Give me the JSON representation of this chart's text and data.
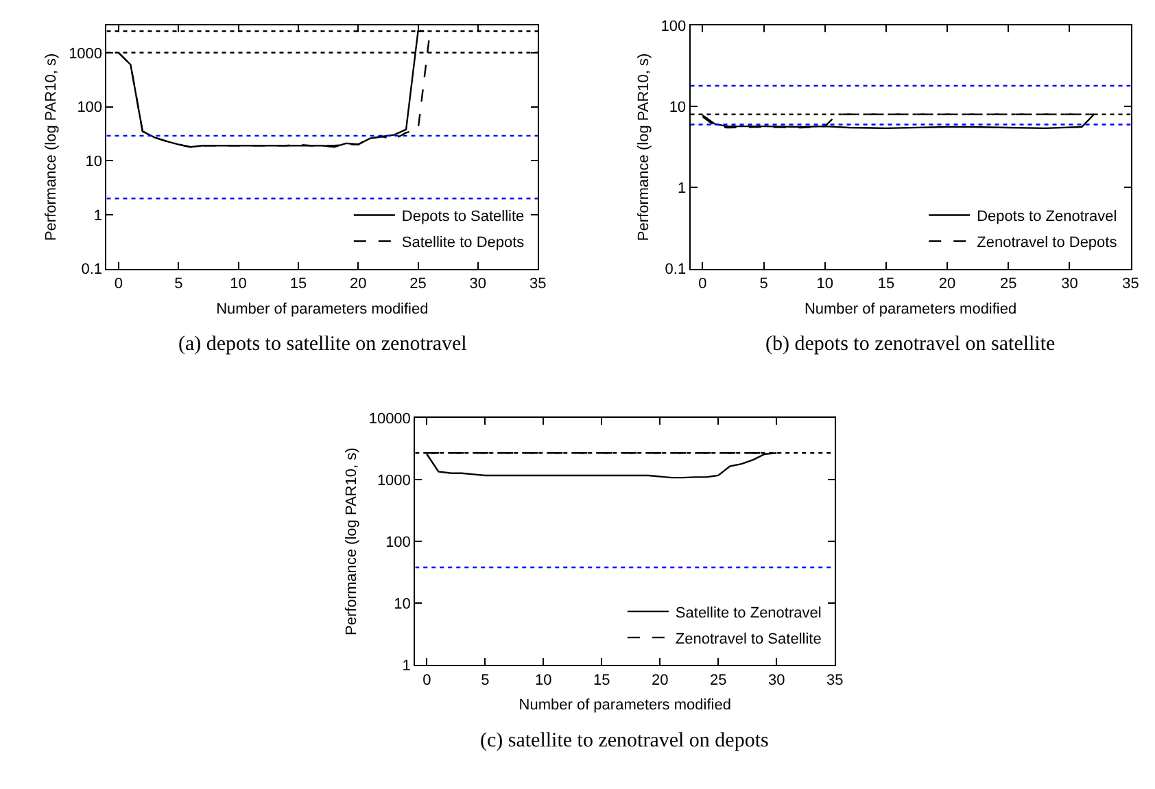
{
  "chart_data": [
    {
      "type": "line",
      "title": "(a) depots to satellite on zenotravel",
      "xlabel": "Number of parameters modified",
      "ylabel": "Performance (log PAR10, s)",
      "log": true,
      "legend": "bottom right",
      "marker": "none",
      "xlim": [
        -1,
        35
      ],
      "xticks": [
        0,
        5,
        10,
        15,
        20,
        25,
        30,
        35
      ],
      "ylim": [
        0.1,
        3200
      ],
      "yticks": [
        0.1,
        1,
        10,
        100,
        1000
      ],
      "ref_lines": [
        {
          "axis": "y",
          "value": 2500,
          "color": "#000000",
          "line_style": "dotted"
        },
        {
          "axis": "y",
          "value": 1000,
          "color": "#000000",
          "line_style": "dotted"
        },
        {
          "axis": "y",
          "value": 29,
          "color": "#0000ff",
          "line_style": "dotted"
        },
        {
          "axis": "y",
          "value": 2,
          "color": "#0000ff",
          "line_style": "dotted"
        }
      ],
      "series": [
        {
          "name": "Depots to Satellite",
          "color": "#000000",
          "line_style": "solid",
          "x": [
            0,
            1,
            2,
            3,
            4,
            5,
            6,
            7,
            8,
            9,
            10,
            11,
            12,
            13,
            14,
            15,
            16,
            17,
            18,
            19,
            20,
            21,
            22,
            23,
            24,
            25,
            25.5
          ],
          "values": [
            1000,
            600,
            35,
            27,
            23,
            20,
            18,
            19,
            19,
            19,
            19,
            19,
            19,
            19,
            19,
            19,
            19,
            19,
            18,
            21,
            20,
            26,
            28,
            30,
            38,
            2500,
            2500
          ]
        },
        {
          "name": "Satellite to Depots",
          "color": "#000000",
          "line_style": "dashed",
          "x": [
            0,
            1,
            2,
            3,
            4,
            5,
            6,
            7,
            8,
            9,
            10,
            11,
            12,
            13,
            14,
            15,
            16,
            17,
            18,
            19,
            20,
            21,
            22,
            23,
            24,
            25,
            26
          ],
          "values": [
            1000,
            600,
            35,
            27,
            23,
            20,
            18,
            19,
            19,
            19,
            19,
            19,
            19,
            19,
            19,
            20,
            19,
            19,
            19,
            20,
            20,
            26,
            28,
            25,
            33,
            38,
            2500
          ]
        }
      ]
    },
    {
      "type": "line",
      "title": "(b) depots to zenotravel on satellite",
      "xlabel": "Number of parameters modified",
      "ylabel": "Performance (log PAR10, s)",
      "log": true,
      "legend": "bottom right",
      "marker": "none",
      "xlim": [
        -1,
        35
      ],
      "xticks": [
        0,
        5,
        10,
        15,
        20,
        25,
        30,
        35
      ],
      "ylim": [
        0.1,
        100
      ],
      "yticks": [
        0.1,
        1,
        10,
        100
      ],
      "ref_lines": [
        {
          "axis": "y",
          "value": 18,
          "color": "#0000ff",
          "line_style": "dotted"
        },
        {
          "axis": "y",
          "value": 8,
          "color": "#000000",
          "line_style": "dotted"
        },
        {
          "axis": "y",
          "value": 6,
          "color": "#0000ff",
          "line_style": "dotted"
        }
      ],
      "series": [
        {
          "name": "Depots to Zenotravel",
          "color": "#000000",
          "line_style": "solid",
          "x": [
            0,
            1,
            2,
            5,
            8,
            10,
            12,
            15,
            20,
            22,
            25,
            28,
            31,
            32
          ],
          "values": [
            7.8,
            6.1,
            5.7,
            5.7,
            5.6,
            5.7,
            5.5,
            5.4,
            5.6,
            5.6,
            5.5,
            5.4,
            5.6,
            8
          ]
        },
        {
          "name": "Zenotravel to Depots",
          "color": "#000000",
          "line_style": "dashed",
          "x": [
            0,
            1,
            2,
            5,
            8,
            10,
            11,
            15,
            20,
            25,
            30,
            32
          ],
          "values": [
            7.5,
            5.8,
            5.5,
            5.6,
            5.5,
            5.7,
            8,
            8,
            8,
            8,
            8,
            8
          ]
        }
      ]
    },
    {
      "type": "line",
      "title": "(c) satellite to zenotravel on depots",
      "xlabel": "Number of parameters modified",
      "ylabel": "Performance (log PAR10, s)",
      "log": true,
      "legend": "bottom right",
      "marker": "none",
      "xlim": [
        -1,
        35
      ],
      "xticks": [
        0,
        5,
        10,
        15,
        20,
        25,
        30,
        35
      ],
      "ylim": [
        1,
        10000
      ],
      "yticks": [
        1,
        10,
        100,
        1000,
        10000
      ],
      "ref_lines": [
        {
          "axis": "y",
          "value": 2700,
          "color": "#000000",
          "line_style": "dotted"
        },
        {
          "axis": "y",
          "value": 38,
          "color": "#0000ff",
          "line_style": "dotted"
        }
      ],
      "series": [
        {
          "name": "Satellite to Zenotravel",
          "color": "#000000",
          "line_style": "solid",
          "x": [
            0,
            1,
            2,
            3,
            4,
            5,
            8,
            12,
            16,
            19,
            20,
            21,
            22,
            23,
            24,
            25,
            26,
            27,
            28,
            29,
            30
          ],
          "values": [
            2600,
            1350,
            1280,
            1270,
            1220,
            1170,
            1170,
            1170,
            1170,
            1170,
            1120,
            1080,
            1080,
            1100,
            1100,
            1170,
            1650,
            1800,
            2100,
            2600,
            2700
          ]
        },
        {
          "name": "Zenotravel to Satellite",
          "color": "#000000",
          "line_style": "dashed",
          "x": [
            0,
            5,
            10,
            15,
            20,
            25,
            29
          ],
          "values": [
            2700,
            2700,
            2700,
            2700,
            2700,
            2700,
            2700
          ]
        }
      ]
    }
  ]
}
